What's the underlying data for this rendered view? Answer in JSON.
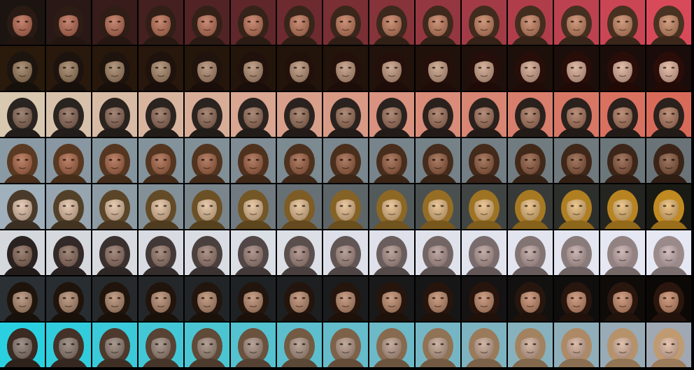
{
  "grid": {
    "rows": 8,
    "columns": 15,
    "description_free": true
  },
  "rows": [
    {
      "start": {
        "bg": "#1c1410",
        "skin": "#b86a52",
        "hair": "#2a1a14"
      },
      "end": {
        "bg": "#d84a5a",
        "skin": "#c98a66",
        "hair": "#4a3222"
      }
    },
    {
      "start": {
        "bg": "#2a1a0c",
        "skin": "#9a7a5c",
        "hair": "#1c140e"
      },
      "end": {
        "bg": "#1a0c0a",
        "skin": "#e0b09a",
        "hair": "#2a0c08"
      }
    },
    {
      "start": {
        "bg": "#d8c8b0",
        "skin": "#8a6a58",
        "hair": "#2a2420"
      },
      "end": {
        "bg": "#d86a5a",
        "skin": "#b07a60",
        "hair": "#2a201c"
      }
    },
    {
      "start": {
        "bg": "#8a9aa4",
        "skin": "#b06a4a",
        "hair": "#5a3a22"
      },
      "end": {
        "bg": "#6a7478",
        "skin": "#8a5a40",
        "hair": "#3a2418"
      }
    },
    {
      "start": {
        "bg": "#a0b0bc",
        "skin": "#e0c0a8",
        "hair": "#4a3a2a"
      },
      "end": {
        "bg": "#1a1a14",
        "skin": "#e8b870",
        "hair": "#c08a20"
      }
    },
    {
      "start": {
        "bg": "#d4d8dc",
        "skin": "#8a6a5a",
        "hair": "#2a2220"
      },
      "end": {
        "bg": "#e6e8f4",
        "skin": "#c8b0b0",
        "hair": "#9a8a8a"
      }
    },
    {
      "start": {
        "bg": "#2a3034",
        "skin": "#b08a70",
        "hair": "#1e140c"
      },
      "end": {
        "bg": "#0c0806",
        "skin": "#c88a6a",
        "hair": "#2a160e"
      }
    },
    {
      "start": {
        "bg": "#2ad0e0",
        "skin": "#8a7a70",
        "hair": "#3a2a22"
      },
      "end": {
        "bg": "#a0a8b4",
        "skin": "#e0b8a0",
        "hair": "#c09a70"
      }
    }
  ]
}
